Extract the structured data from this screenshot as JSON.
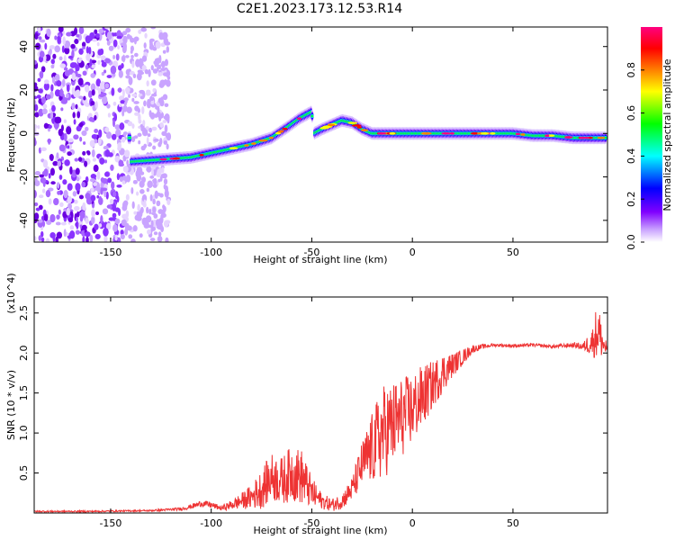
{
  "title": "C2E1.2023.173.12.53.R14",
  "chart_data": [
    {
      "type": "heatmap",
      "xlabel": "Height of straight line (km)",
      "ylabel": "Frequency (Hz)",
      "xlim": [
        -188,
        97
      ],
      "ylim": [
        -50,
        49
      ],
      "x_ticks": [
        -150,
        -100,
        -50,
        0,
        50
      ],
      "y_ticks": [
        -40,
        -20,
        0,
        20,
        40
      ],
      "colorbar": {
        "label": "Normalized spectral amplitude",
        "range": [
          0.0,
          1.0
        ],
        "ticks": [
          "0.0",
          "0.2",
          "0.4",
          "0.6",
          "0.8"
        ],
        "tick_values": [
          0.0,
          0.2,
          0.4,
          0.6,
          0.8
        ],
        "colors": [
          "#ffffff",
          "#8000ff",
          "#0000ff",
          "#00ffff",
          "#00ff00",
          "#ffff00",
          "#ff8000",
          "#ff0000",
          "#ff0080"
        ]
      },
      "ridge": {
        "x": [
          -140,
          -125,
          -110,
          -100,
          -90,
          -80,
          -70,
          -62,
          -56,
          -50,
          -49,
          -45,
          -40,
          -35,
          -30,
          -25,
          -20,
          -15,
          -10,
          0,
          10,
          20,
          30,
          40,
          50,
          60,
          70,
          80,
          90,
          95
        ],
        "y": [
          -13,
          -12,
          -11,
          -9,
          -7,
          -5,
          -2,
          3,
          7,
          10,
          0,
          2,
          4,
          6,
          5,
          2,
          0,
          0,
          0,
          0,
          0,
          0,
          0,
          0,
          0,
          -1,
          -1,
          -2,
          -2,
          -2
        ]
      },
      "noise_x_range": [
        -188,
        -125
      ]
    },
    {
      "type": "line",
      "xlabel": "Height of straight line (km)",
      "ylabel": "SNR (10 * v/v)",
      "y_multiplier": "(x10^4)",
      "xlim": [
        -188,
        97
      ],
      "ylim": [
        0,
        2.7
      ],
      "x_ticks": [
        -150,
        -100,
        -50,
        0,
        50
      ],
      "y_ticks": [
        0.5,
        1.0,
        1.5,
        2.0,
        2.5
      ],
      "series_color": "#ee3333",
      "x": [
        -188,
        -160,
        -130,
        -115,
        -110,
        -105,
        -100,
        -95,
        -90,
        -85,
        -80,
        -75,
        -70,
        -65,
        -60,
        -55,
        -50,
        -45,
        -40,
        -35,
        -30,
        -25,
        -20,
        -15,
        -10,
        -5,
        0,
        5,
        10,
        15,
        20,
        25,
        30,
        35,
        40,
        50,
        60,
        70,
        80,
        85,
        90,
        92,
        95,
        97
      ],
      "y": [
        0.02,
        0.02,
        0.03,
        0.05,
        0.08,
        0.12,
        0.1,
        0.06,
        0.1,
        0.15,
        0.2,
        0.3,
        0.45,
        0.4,
        0.5,
        0.45,
        0.25,
        0.15,
        0.1,
        0.15,
        0.3,
        0.6,
        0.8,
        1.0,
        1.1,
        1.2,
        1.3,
        1.45,
        1.6,
        1.75,
        1.85,
        1.95,
        2.05,
        2.08,
        2.1,
        2.09,
        2.1,
        2.08,
        2.1,
        2.08,
        2.15,
        2.3,
        2.1,
        2.05
      ],
      "noise_amplitude": [
        0.01,
        0.01,
        0.01,
        0.02,
        0.03,
        0.04,
        0.04,
        0.03,
        0.06,
        0.1,
        0.15,
        0.25,
        0.3,
        0.3,
        0.35,
        0.35,
        0.2,
        0.1,
        0.08,
        0.1,
        0.15,
        0.3,
        0.45,
        0.6,
        0.55,
        0.5,
        0.45,
        0.4,
        0.3,
        0.25,
        0.15,
        0.1,
        0.05,
        0.03,
        0.02,
        0.02,
        0.02,
        0.02,
        0.03,
        0.05,
        0.2,
        0.4,
        0.15,
        0.08
      ]
    }
  ]
}
